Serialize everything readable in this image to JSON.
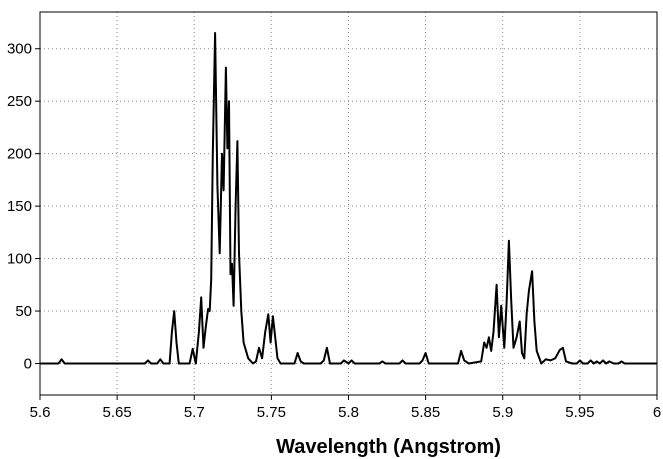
{
  "chart_data": {
    "type": "line",
    "title": "",
    "xlabel": "Wavelength (Angstrom)",
    "ylabel": "",
    "xlim": [
      5.6,
      6.0
    ],
    "ylim": [
      -30,
      335
    ],
    "grid": true,
    "x_ticks": [
      5.6,
      5.65,
      5.7,
      5.75,
      5.8,
      5.85,
      5.9,
      5.95,
      6.0
    ],
    "x_tick_labels": [
      "5.6",
      "5.65",
      "5.7",
      "5.75",
      "5.8",
      "5.85",
      "5.9",
      "5.95",
      "6"
    ],
    "y_ticks": [
      0,
      50,
      100,
      150,
      200,
      250,
      300
    ],
    "y_tick_labels": [
      "0",
      "50",
      "100",
      "150",
      "200",
      "250",
      "300"
    ],
    "series": [
      {
        "color": "#000000",
        "x": [
          5.6,
          5.612,
          5.614,
          5.616,
          5.62,
          5.668,
          5.67,
          5.672,
          5.676,
          5.678,
          5.68,
          5.684,
          5.6855,
          5.687,
          5.6885,
          5.69,
          5.697,
          5.699,
          5.701,
          5.703,
          5.7045,
          5.706,
          5.7075,
          5.709,
          5.71,
          5.711,
          5.712,
          5.7135,
          5.715,
          5.7165,
          5.718,
          5.719,
          5.7205,
          5.7215,
          5.7225,
          5.7235,
          5.7245,
          5.7255,
          5.7268,
          5.728,
          5.729,
          5.7305,
          5.732,
          5.735,
          5.738,
          5.74,
          5.742,
          5.744,
          5.746,
          5.748,
          5.7495,
          5.751,
          5.7525,
          5.754,
          5.756,
          5.76,
          5.765,
          5.767,
          5.769,
          5.771,
          5.776,
          5.782,
          5.784,
          5.786,
          5.788,
          5.795,
          5.797,
          5.8,
          5.802,
          5.804,
          5.82,
          5.822,
          5.824,
          5.833,
          5.835,
          5.837,
          5.846,
          5.848,
          5.85,
          5.852,
          5.871,
          5.873,
          5.875,
          5.878,
          5.886,
          5.888,
          5.8895,
          5.891,
          5.8925,
          5.894,
          5.896,
          5.8975,
          5.899,
          5.901,
          5.9025,
          5.904,
          5.9055,
          5.907,
          5.909,
          5.911,
          5.9125,
          5.914,
          5.9155,
          5.917,
          5.919,
          5.9205,
          5.922,
          5.925,
          5.928,
          5.931,
          5.934,
          5.937,
          5.939,
          5.941,
          5.945,
          5.948,
          5.95,
          5.952,
          5.955,
          5.957,
          5.959,
          5.961,
          5.963,
          5.965,
          5.967,
          5.969,
          5.972,
          5.975,
          5.977,
          5.979,
          5.985,
          6.0
        ],
        "y": [
          0,
          0,
          4,
          0,
          0,
          0,
          3,
          0,
          0,
          4,
          0,
          0,
          30,
          50,
          20,
          0,
          0,
          14,
          0,
          30,
          63,
          15,
          35,
          52,
          50,
          80,
          200,
          315,
          170,
          105,
          200,
          165,
          282,
          205,
          250,
          85,
          95,
          55,
          150,
          212,
          105,
          50,
          20,
          5,
          0,
          2,
          15,
          5,
          30,
          47,
          20,
          45,
          25,
          5,
          0,
          0,
          0,
          10,
          2,
          0,
          0,
          0,
          3,
          15,
          0,
          0,
          3,
          0,
          3,
          0,
          0,
          2,
          0,
          0,
          3,
          0,
          0,
          3,
          10,
          0,
          0,
          12,
          3,
          0,
          2,
          20,
          15,
          25,
          12,
          30,
          75,
          25,
          55,
          15,
          58,
          117,
          60,
          15,
          25,
          40,
          10,
          5,
          48,
          70,
          88,
          40,
          12,
          0,
          4,
          3,
          5,
          13,
          15,
          2,
          0,
          0,
          3,
          0,
          0,
          3,
          0,
          2,
          0,
          3,
          0,
          2,
          0,
          0,
          2,
          0,
          0,
          0
        ]
      }
    ]
  }
}
